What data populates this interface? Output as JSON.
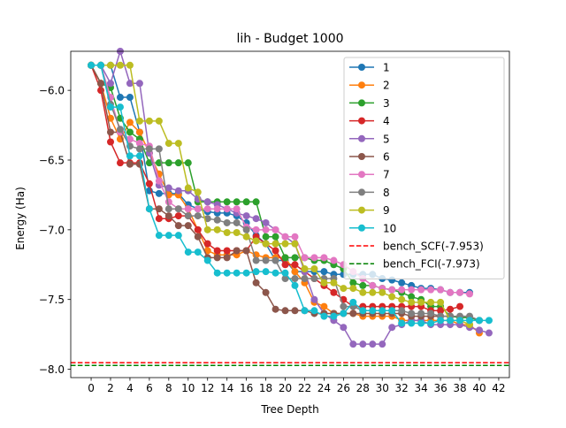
{
  "chart_data": {
    "type": "line",
    "title": "lih - Budget  1000",
    "xlabel": "Tree Depth",
    "ylabel": "Energy (Ha)",
    "xlim": [
      -2.1,
      43.1
    ],
    "ylim": [
      -8.06,
      -5.72
    ],
    "xticks": [
      0,
      2,
      4,
      6,
      8,
      10,
      12,
      14,
      16,
      18,
      20,
      22,
      24,
      26,
      28,
      30,
      32,
      34,
      36,
      38,
      40,
      42
    ],
    "yticks": [
      -6.0,
      -6.5,
      -7.0,
      -7.5,
      -8.0
    ],
    "ytick_labels": [
      "−6.0",
      "−6.5",
      "−7.0",
      "−7.5",
      "−8.0"
    ],
    "grid": false,
    "legend_position": "top-right",
    "series": [
      {
        "name": "1",
        "color": "#1f77b4",
        "x": [
          0,
          1,
          2,
          3,
          4,
          5,
          6,
          7,
          8,
          9,
          10,
          11,
          12,
          13,
          14,
          15,
          16,
          17,
          18,
          19,
          20,
          21,
          22,
          23,
          24,
          25,
          26,
          27,
          28,
          29,
          30,
          31,
          32,
          33,
          34,
          35,
          36,
          37,
          38,
          39
        ],
        "y": [
          -5.82,
          -5.82,
          -5.82,
          -6.05,
          -6.05,
          -6.3,
          -6.72,
          -6.74,
          -6.74,
          -6.74,
          -6.82,
          -6.85,
          -6.87,
          -6.88,
          -6.88,
          -6.9,
          -6.95,
          -7.04,
          -7.1,
          -7.22,
          -7.22,
          -7.3,
          -7.3,
          -7.3,
          -7.3,
          -7.32,
          -7.32,
          -7.32,
          -7.32,
          -7.32,
          -7.35,
          -7.36,
          -7.38,
          -7.4,
          -7.42,
          -7.42,
          -7.43,
          -7.45,
          -7.45,
          -7.45
        ]
      },
      {
        "name": "2",
        "color": "#ff7f0e",
        "x": [
          0,
          1,
          2,
          3,
          4,
          5,
          6,
          7,
          8,
          9,
          10,
          11,
          12,
          13,
          14,
          15,
          16,
          17,
          18,
          19,
          20,
          21,
          22,
          23,
          24,
          25,
          26,
          27,
          28,
          29,
          30,
          31,
          32,
          33,
          34,
          35,
          36,
          37,
          38,
          39,
          40
        ],
        "y": [
          -5.82,
          -5.95,
          -6.2,
          -6.35,
          -6.23,
          -6.3,
          -6.45,
          -6.6,
          -6.75,
          -6.75,
          -6.85,
          -7.0,
          -7.15,
          -7.18,
          -7.18,
          -7.18,
          -7.15,
          -7.18,
          -7.2,
          -7.2,
          -7.2,
          -7.3,
          -7.38,
          -7.52,
          -7.55,
          -7.6,
          -7.6,
          -7.6,
          -7.62,
          -7.62,
          -7.62,
          -7.62,
          -7.65,
          -7.65,
          -7.65,
          -7.65,
          -7.65,
          -7.65,
          -7.68,
          -7.68,
          -7.74
        ]
      },
      {
        "name": "3",
        "color": "#2ca02c",
        "x": [
          0,
          1,
          2,
          3,
          4,
          5,
          6,
          7,
          8,
          9,
          10,
          11,
          12,
          13,
          14,
          15,
          16,
          17,
          18,
          19,
          20,
          21,
          22,
          23,
          24,
          25,
          26,
          27,
          28,
          29,
          30,
          31,
          32,
          33,
          34,
          35,
          36,
          37,
          38,
          39,
          40
        ],
        "y": [
          -5.82,
          -5.95,
          -5.98,
          -6.2,
          -6.3,
          -6.35,
          -6.52,
          -6.52,
          -6.52,
          -6.52,
          -6.52,
          -6.8,
          -6.8,
          -6.8,
          -6.8,
          -6.8,
          -6.8,
          -6.8,
          -7.05,
          -7.05,
          -7.2,
          -7.2,
          -7.2,
          -7.22,
          -7.22,
          -7.25,
          -7.28,
          -7.38,
          -7.4,
          -7.4,
          -7.42,
          -7.43,
          -7.45,
          -7.48,
          -7.5,
          -7.55,
          -7.55,
          -7.62,
          -7.63,
          -7.63,
          -7.65
        ]
      },
      {
        "name": "4",
        "color": "#d62728",
        "x": [
          0,
          1,
          2,
          3,
          4,
          5,
          6,
          7,
          8,
          9,
          10,
          11,
          12,
          13,
          14,
          15,
          16,
          17,
          18,
          19,
          20,
          21,
          22,
          23,
          24,
          25,
          26,
          27,
          28,
          29,
          30,
          31,
          32,
          33,
          34,
          35,
          36,
          37,
          38
        ],
        "y": [
          -5.82,
          -6.0,
          -6.37,
          -6.52,
          -6.52,
          -6.52,
          -6.67,
          -6.92,
          -6.92,
          -6.9,
          -6.9,
          -7.0,
          -7.1,
          -7.15,
          -7.15,
          -7.15,
          -7.15,
          -7.05,
          -7.1,
          -7.15,
          -7.25,
          -7.25,
          -7.3,
          -7.35,
          -7.4,
          -7.45,
          -7.5,
          -7.55,
          -7.55,
          -7.55,
          -7.55,
          -7.55,
          -7.55,
          -7.55,
          -7.55,
          -7.58,
          -7.58,
          -7.57,
          -7.55
        ]
      },
      {
        "name": "5",
        "color": "#9467bd",
        "x": [
          0,
          1,
          2,
          3,
          4,
          5,
          6,
          7,
          8,
          9,
          10,
          11,
          12,
          13,
          14,
          15,
          16,
          17,
          18,
          19,
          20,
          21,
          22,
          23,
          24,
          25,
          26,
          27,
          28,
          29,
          30,
          31,
          32,
          33,
          34,
          35,
          36,
          37,
          38,
          39,
          40,
          41
        ],
        "y": [
          -5.82,
          -5.82,
          -5.95,
          -5.72,
          -5.95,
          -5.95,
          -6.45,
          -6.68,
          -6.7,
          -6.72,
          -6.72,
          -6.78,
          -6.8,
          -6.82,
          -6.85,
          -6.88,
          -6.9,
          -6.92,
          -6.95,
          -7.0,
          -7.05,
          -7.1,
          -7.3,
          -7.5,
          -7.6,
          -7.65,
          -7.7,
          -7.82,
          -7.82,
          -7.82,
          -7.82,
          -7.7,
          -7.68,
          -7.65,
          -7.65,
          -7.68,
          -7.68,
          -7.68,
          -7.68,
          -7.7,
          -7.72,
          -7.74
        ]
      },
      {
        "name": "6",
        "color": "#8c564b",
        "x": [
          0,
          1,
          2,
          3,
          4,
          5,
          6,
          7,
          8,
          9,
          10,
          11,
          12,
          13,
          14,
          15,
          16,
          17,
          18,
          19,
          20,
          21,
          22,
          23,
          24,
          25,
          26,
          27,
          28,
          29,
          30,
          31,
          32,
          33,
          34,
          35,
          36,
          37
        ],
        "y": [
          -5.82,
          -5.95,
          -6.3,
          -6.3,
          -6.53,
          -6.53,
          -6.85,
          -6.85,
          -6.9,
          -6.97,
          -6.97,
          -7.05,
          -7.2,
          -7.2,
          -7.2,
          -7.15,
          -7.15,
          -7.38,
          -7.45,
          -7.57,
          -7.58,
          -7.58,
          -7.58,
          -7.6,
          -7.6,
          -7.6,
          -7.6,
          -7.6,
          -7.6,
          -7.6,
          -7.6,
          -7.6,
          -7.6,
          -7.62,
          -7.62,
          -7.62,
          -7.62,
          -7.62
        ]
      },
      {
        "name": "7",
        "color": "#e377c2",
        "x": [
          0,
          1,
          2,
          3,
          4,
          5,
          6,
          7,
          8,
          9,
          10,
          11,
          12,
          13,
          14,
          15,
          16,
          17,
          18,
          19,
          20,
          21,
          22,
          23,
          24,
          25,
          26,
          27,
          28,
          29,
          30,
          31,
          32,
          33,
          34,
          35,
          36,
          37,
          38,
          39
        ],
        "y": [
          -5.82,
          -5.82,
          -6.05,
          -6.3,
          -6.35,
          -6.38,
          -6.4,
          -6.65,
          -6.8,
          -6.85,
          -6.85,
          -6.85,
          -6.85,
          -6.85,
          -6.85,
          -6.85,
          -6.98,
          -7.0,
          -7.0,
          -7.0,
          -7.05,
          -7.05,
          -7.2,
          -7.2,
          -7.2,
          -7.22,
          -7.25,
          -7.3,
          -7.35,
          -7.4,
          -7.42,
          -7.43,
          -7.43,
          -7.43,
          -7.43,
          -7.43,
          -7.43,
          -7.45,
          -7.45,
          -7.46
        ]
      },
      {
        "name": "8",
        "color": "#7f7f7f",
        "x": [
          0,
          1,
          2,
          3,
          4,
          5,
          6,
          7,
          8,
          9,
          10,
          11,
          12,
          13,
          14,
          15,
          16,
          17,
          18,
          19,
          20,
          21,
          22,
          23,
          24,
          25,
          26,
          27,
          28,
          29,
          30,
          31,
          32,
          33,
          34,
          35,
          36,
          37,
          38,
          39,
          40
        ],
        "y": [
          -5.82,
          -5.82,
          -6.1,
          -6.28,
          -6.4,
          -6.42,
          -6.42,
          -6.42,
          -6.85,
          -6.85,
          -6.9,
          -6.9,
          -6.92,
          -6.93,
          -6.95,
          -6.95,
          -7.0,
          -7.22,
          -7.22,
          -7.22,
          -7.35,
          -7.35,
          -7.35,
          -7.35,
          -7.35,
          -7.35,
          -7.55,
          -7.55,
          -7.58,
          -7.58,
          -7.58,
          -7.58,
          -7.58,
          -7.6,
          -7.6,
          -7.6,
          -7.62,
          -7.62,
          -7.62,
          -7.62,
          -7.65
        ]
      },
      {
        "name": "9",
        "color": "#bcbd22",
        "x": [
          0,
          1,
          2,
          3,
          4,
          5,
          6,
          7,
          8,
          9,
          10,
          11,
          12,
          13,
          14,
          15,
          16,
          17,
          18,
          19,
          20,
          21,
          22,
          23,
          24,
          25,
          26,
          27,
          28,
          29,
          30,
          31,
          32,
          33,
          34,
          35,
          36,
          37,
          38,
          39
        ],
        "y": [
          -5.82,
          -5.82,
          -5.82,
          -5.82,
          -5.82,
          -6.22,
          -6.22,
          -6.22,
          -6.38,
          -6.38,
          -6.7,
          -6.73,
          -7.0,
          -7.0,
          -7.02,
          -7.02,
          -7.05,
          -7.08,
          -7.1,
          -7.1,
          -7.1,
          -7.1,
          -7.28,
          -7.28,
          -7.38,
          -7.38,
          -7.42,
          -7.42,
          -7.45,
          -7.45,
          -7.45,
          -7.48,
          -7.5,
          -7.52,
          -7.52,
          -7.52,
          -7.52,
          -7.65,
          -7.65,
          -7.68
        ]
      },
      {
        "name": "10",
        "color": "#17becf",
        "x": [
          0,
          1,
          2,
          3,
          4,
          5,
          6,
          7,
          8,
          9,
          10,
          11,
          12,
          13,
          14,
          15,
          16,
          17,
          18,
          19,
          20,
          21,
          22,
          23,
          24,
          25,
          26,
          27,
          28,
          29,
          30,
          31,
          32,
          33,
          34,
          35,
          36,
          37,
          38,
          39,
          40,
          41
        ],
        "y": [
          -5.82,
          -5.82,
          -6.12,
          -6.12,
          -6.47,
          -6.47,
          -6.85,
          -7.04,
          -7.04,
          -7.04,
          -7.16,
          -7.16,
          -7.22,
          -7.31,
          -7.31,
          -7.31,
          -7.31,
          -7.3,
          -7.3,
          -7.31,
          -7.31,
          -7.4,
          -7.58,
          -7.58,
          -7.62,
          -7.62,
          -7.6,
          -7.52,
          -7.58,
          -7.58,
          -7.58,
          -7.58,
          -7.67,
          -7.67,
          -7.67,
          -7.67,
          -7.65,
          -7.65,
          -7.65,
          -7.65,
          -7.65,
          -7.65
        ]
      }
    ],
    "reference_lines": [
      {
        "name": "bench_SCF(-7.953)",
        "y": -7.953,
        "color": "#ff0000"
      },
      {
        "name": "bench_FCI(-7.973)",
        "y": -7.973,
        "color": "#008000"
      }
    ]
  }
}
